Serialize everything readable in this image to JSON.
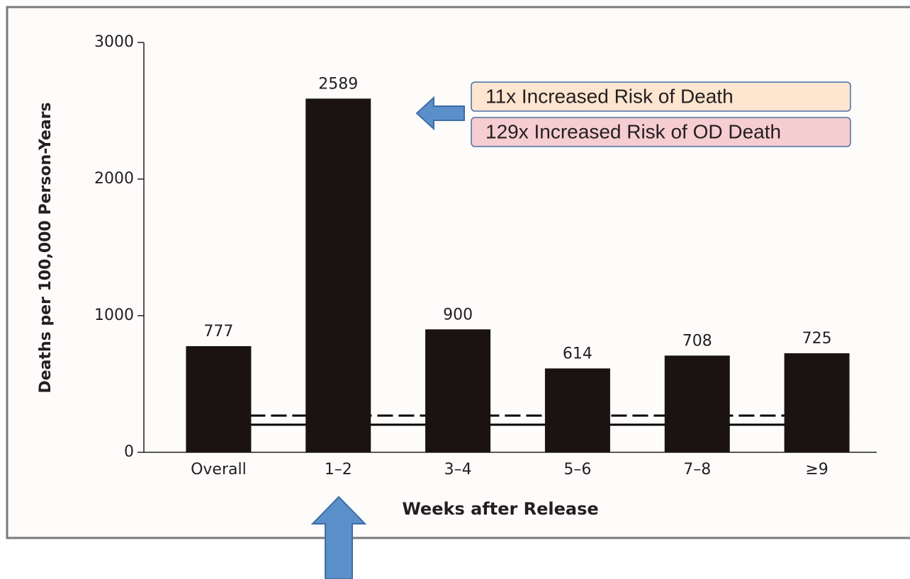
{
  "chart_data": {
    "type": "bar",
    "y_label": "Deaths per 100,000 Person-Years",
    "x_label": "Weeks after Release",
    "categories": [
      "Overall",
      "1–2",
      "3–4",
      "5–6",
      "7–8",
      "≥9"
    ],
    "values": [
      777,
      2589,
      900,
      614,
      708,
      725
    ],
    "color": "#1a1311",
    "ylim": [
      0,
      3000
    ],
    "yticks": [
      0,
      1000,
      2000,
      3000
    ],
    "reference_lines": [
      {
        "value": 269,
        "style": "dashed"
      },
      {
        "value": 202,
        "style": "solid"
      }
    ],
    "annotations": [
      {
        "text": "11x Increased Risk of Death",
        "color": "#fde5cf"
      },
      {
        "text": "129x Increased Risk of OD Death",
        "color": "#f6cdd0"
      }
    ]
  }
}
